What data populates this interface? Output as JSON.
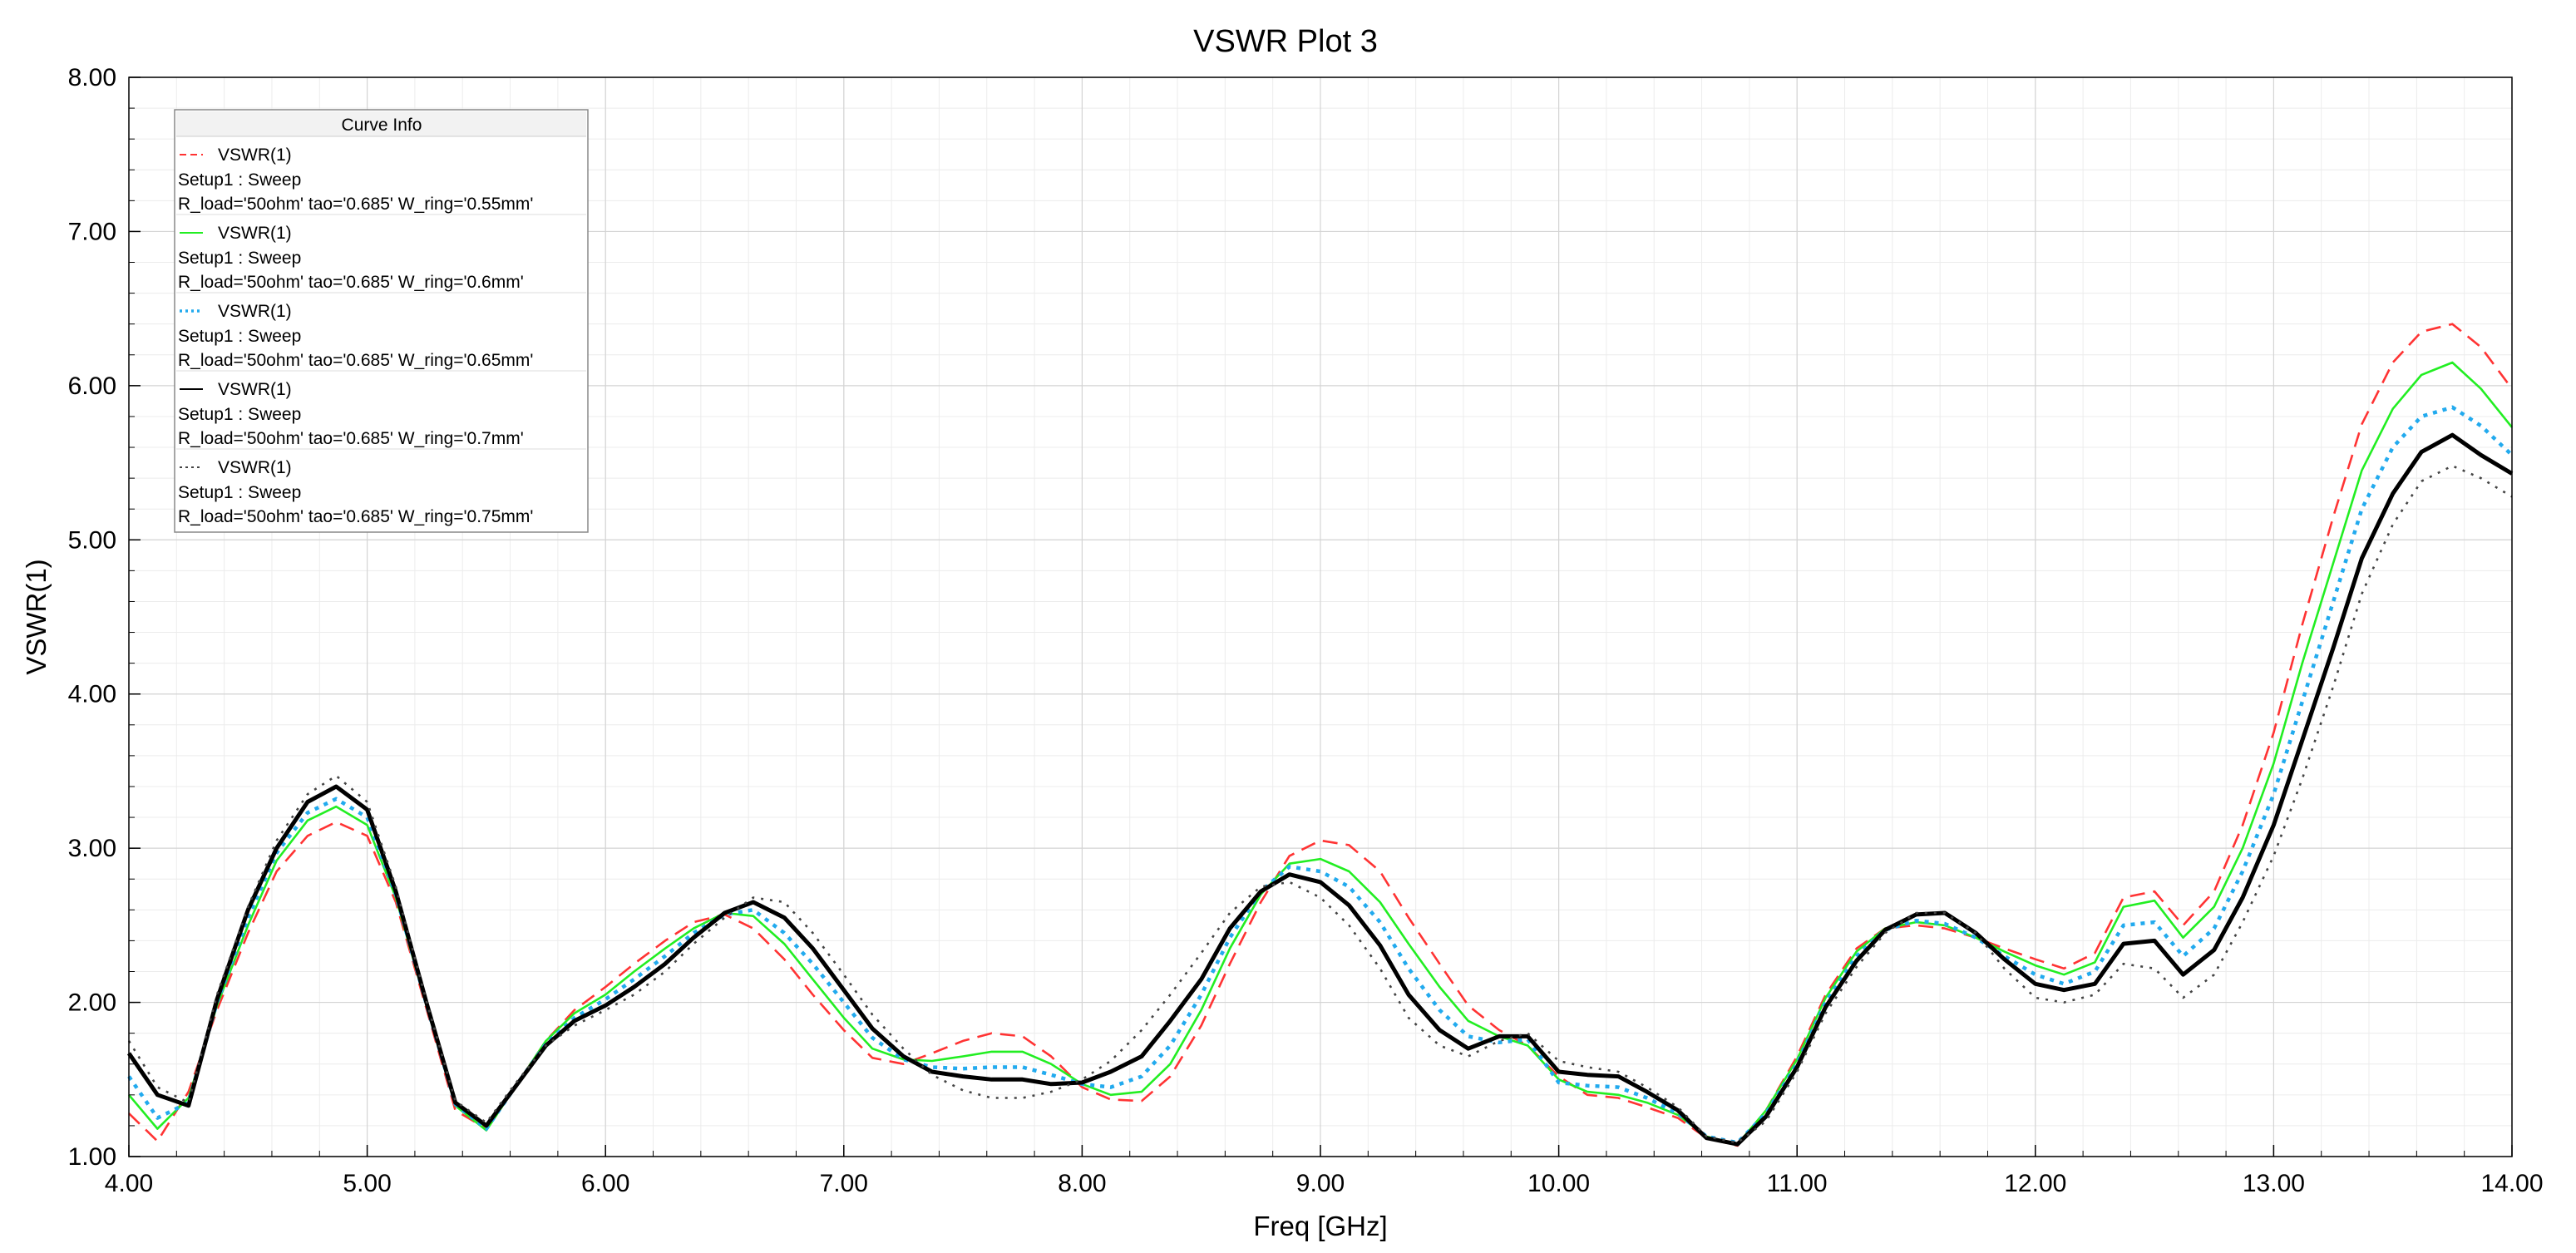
{
  "chart_data": {
    "type": "line",
    "title": "VSWR Plot 3",
    "xlabel": "Freq [GHz]",
    "ylabel": "VSWR(1)",
    "xlim": [
      4.0,
      14.0
    ],
    "ylim": [
      1.0,
      8.0
    ],
    "x_ticks": [
      "4.00",
      "5.00",
      "6.00",
      "7.00",
      "8.00",
      "9.00",
      "10.00",
      "11.00",
      "12.00",
      "13.00",
      "14.00"
    ],
    "y_ticks": [
      "1.00",
      "2.00",
      "3.00",
      "4.00",
      "5.00",
      "6.00",
      "7.00",
      "8.00"
    ],
    "grid": true,
    "legend": {
      "title": "Curve Info",
      "placement": "top-left"
    },
    "x": [
      4.0,
      4.12,
      4.25,
      4.37,
      4.5,
      4.62,
      4.75,
      4.87,
      5.0,
      5.12,
      5.25,
      5.37,
      5.5,
      5.62,
      5.75,
      5.87,
      6.0,
      6.12,
      6.25,
      6.37,
      6.5,
      6.62,
      6.75,
      6.87,
      7.0,
      7.12,
      7.25,
      7.37,
      7.5,
      7.62,
      7.75,
      7.87,
      8.0,
      8.12,
      8.25,
      8.37,
      8.5,
      8.62,
      8.75,
      8.87,
      9.0,
      9.12,
      9.25,
      9.37,
      9.5,
      9.62,
      9.75,
      9.87,
      10.0,
      10.12,
      10.25,
      10.37,
      10.5,
      10.62,
      10.75,
      10.87,
      11.0,
      11.12,
      11.25,
      11.37,
      11.5,
      11.62,
      11.75,
      11.87,
      12.0,
      12.12,
      12.25,
      12.37,
      12.5,
      12.62,
      12.75,
      12.87,
      13.0,
      13.12,
      13.25,
      13.37,
      13.5,
      13.62,
      13.75,
      13.87,
      14.0
    ],
    "series": [
      {
        "name": "VSWR(1)",
        "setup": "Setup1 : Sweep",
        "params": "R_load='50ohm' tao='0.685' W_ring='0.55mm'",
        "color": "#ff3333",
        "dash": "dash",
        "values": [
          1.28,
          1.1,
          1.42,
          1.95,
          2.45,
          2.85,
          3.08,
          3.17,
          3.08,
          2.65,
          1.95,
          1.3,
          1.18,
          1.45,
          1.75,
          1.95,
          2.1,
          2.25,
          2.4,
          2.52,
          2.57,
          2.48,
          2.28,
          2.05,
          1.82,
          1.64,
          1.6,
          1.67,
          1.75,
          1.8,
          1.78,
          1.65,
          1.45,
          1.37,
          1.36,
          1.52,
          1.85,
          2.25,
          2.65,
          2.95,
          3.05,
          3.02,
          2.85,
          2.55,
          2.25,
          1.98,
          1.82,
          1.72,
          1.52,
          1.4,
          1.38,
          1.32,
          1.25,
          1.12,
          1.07,
          1.3,
          1.65,
          2.05,
          2.35,
          2.48,
          2.5,
          2.48,
          2.42,
          2.35,
          2.28,
          2.22,
          2.32,
          2.68,
          2.72,
          2.5,
          2.72,
          3.15,
          3.75,
          4.45,
          5.15,
          5.75,
          6.15,
          6.35,
          6.4,
          6.25,
          5.98
        ]
      },
      {
        "name": "VSWR(1)",
        "setup": "Setup1 : Sweep",
        "params": "R_load='50ohm' tao='0.685' W_ring='0.6mm'",
        "color": "#22ee22",
        "dash": "solid",
        "values": [
          1.4,
          1.18,
          1.38,
          1.98,
          2.5,
          2.92,
          3.18,
          3.27,
          3.15,
          2.68,
          1.97,
          1.33,
          1.17,
          1.45,
          1.75,
          1.93,
          2.05,
          2.2,
          2.35,
          2.48,
          2.58,
          2.56,
          2.38,
          2.15,
          1.9,
          1.7,
          1.63,
          1.62,
          1.65,
          1.68,
          1.68,
          1.6,
          1.47,
          1.4,
          1.42,
          1.6,
          1.95,
          2.35,
          2.7,
          2.9,
          2.93,
          2.85,
          2.65,
          2.38,
          2.1,
          1.88,
          1.78,
          1.72,
          1.5,
          1.42,
          1.4,
          1.35,
          1.27,
          1.13,
          1.08,
          1.3,
          1.63,
          2.03,
          2.33,
          2.48,
          2.52,
          2.5,
          2.42,
          2.33,
          2.24,
          2.18,
          2.26,
          2.62,
          2.66,
          2.42,
          2.62,
          3.0,
          3.55,
          4.2,
          4.85,
          5.45,
          5.85,
          6.07,
          6.15,
          5.98,
          5.73
        ]
      },
      {
        "name": "VSWR(1)",
        "setup": "Setup1 : Sweep",
        "params": "R_load='50ohm' tao='0.685' W_ring='0.65mm'",
        "color": "#22aaee",
        "dash": "dot",
        "values": [
          1.52,
          1.25,
          1.35,
          2.0,
          2.55,
          2.97,
          3.23,
          3.32,
          3.2,
          2.7,
          1.98,
          1.34,
          1.18,
          1.45,
          1.73,
          1.9,
          2.02,
          2.15,
          2.3,
          2.45,
          2.57,
          2.6,
          2.45,
          2.25,
          2.0,
          1.77,
          1.63,
          1.58,
          1.57,
          1.58,
          1.58,
          1.53,
          1.47,
          1.45,
          1.52,
          1.72,
          2.05,
          2.42,
          2.72,
          2.88,
          2.85,
          2.75,
          2.52,
          2.22,
          1.95,
          1.78,
          1.74,
          1.76,
          1.48,
          1.46,
          1.45,
          1.38,
          1.28,
          1.13,
          1.09,
          1.28,
          1.6,
          2.0,
          2.3,
          2.47,
          2.53,
          2.51,
          2.42,
          2.3,
          2.18,
          2.12,
          2.2,
          2.5,
          2.52,
          2.3,
          2.48,
          2.85,
          3.35,
          3.95,
          4.6,
          5.2,
          5.6,
          5.8,
          5.86,
          5.74,
          5.55
        ]
      },
      {
        "name": "VSWR(1)",
        "setup": "Setup1 : Sweep",
        "params": "R_load='50ohm' tao='0.685' W_ring='0.7mm'",
        "color": "#000000",
        "dash": "solid",
        "values": [
          1.67,
          1.4,
          1.33,
          2.02,
          2.6,
          3.0,
          3.3,
          3.4,
          3.25,
          2.72,
          1.99,
          1.35,
          1.2,
          1.45,
          1.72,
          1.88,
          1.98,
          2.1,
          2.25,
          2.42,
          2.58,
          2.65,
          2.55,
          2.35,
          2.08,
          1.83,
          1.65,
          1.55,
          1.52,
          1.5,
          1.5,
          1.47,
          1.48,
          1.55,
          1.65,
          1.88,
          2.15,
          2.48,
          2.72,
          2.83,
          2.78,
          2.63,
          2.37,
          2.05,
          1.82,
          1.7,
          1.78,
          1.78,
          1.55,
          1.53,
          1.52,
          1.42,
          1.3,
          1.12,
          1.08,
          1.26,
          1.58,
          1.97,
          2.27,
          2.47,
          2.57,
          2.58,
          2.45,
          2.28,
          2.12,
          2.08,
          2.12,
          2.38,
          2.4,
          2.18,
          2.34,
          2.68,
          3.15,
          3.7,
          4.3,
          4.88,
          5.3,
          5.57,
          5.68,
          5.55,
          5.43
        ]
      },
      {
        "name": "VSWR(1)",
        "setup": "Setup1 : Sweep",
        "params": "R_load='50ohm' tao='0.685' W_ring='0.75mm'",
        "color": "#444444",
        "dash": "finedot",
        "values": [
          1.75,
          1.45,
          1.35,
          2.05,
          2.62,
          3.05,
          3.35,
          3.47,
          3.3,
          2.75,
          2.0,
          1.36,
          1.22,
          1.47,
          1.72,
          1.85,
          1.95,
          2.05,
          2.2,
          2.38,
          2.55,
          2.68,
          2.65,
          2.45,
          2.18,
          1.92,
          1.7,
          1.53,
          1.43,
          1.38,
          1.38,
          1.42,
          1.5,
          1.62,
          1.82,
          2.05,
          2.32,
          2.58,
          2.75,
          2.78,
          2.68,
          2.5,
          2.22,
          1.9,
          1.72,
          1.65,
          1.75,
          1.8,
          1.62,
          1.58,
          1.55,
          1.45,
          1.32,
          1.13,
          1.09,
          1.23,
          1.55,
          1.93,
          2.23,
          2.45,
          2.58,
          2.58,
          2.45,
          2.22,
          2.03,
          2.0,
          2.05,
          2.25,
          2.22,
          2.03,
          2.18,
          2.52,
          2.95,
          3.45,
          4.05,
          4.65,
          5.1,
          5.38,
          5.48,
          5.4,
          5.28
        ]
      }
    ]
  }
}
